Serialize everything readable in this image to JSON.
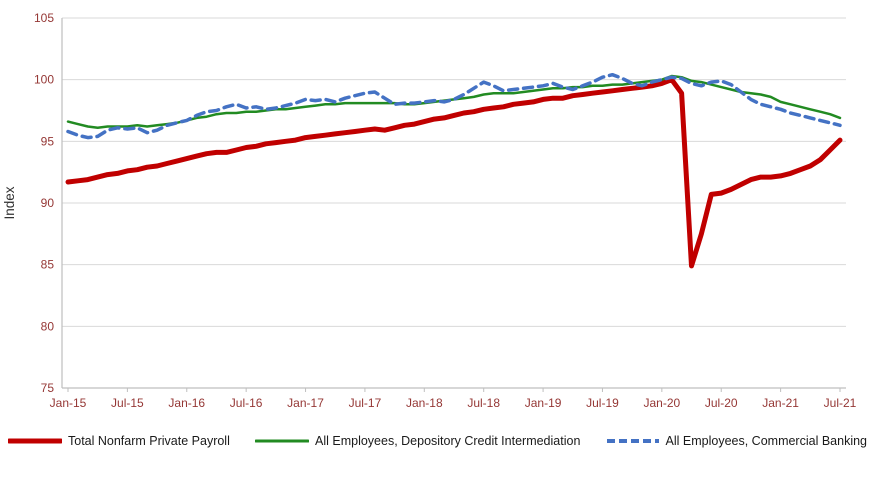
{
  "colors": {
    "background": "#ffffff",
    "gridline": "#d9d9d9",
    "axis_line": "#bfbfbf",
    "tick_label": "#953735",
    "ylabel_text": "#333333",
    "legend_text": "#1a1a1a"
  },
  "chart_data": {
    "type": "line",
    "title": "",
    "xlabel": "",
    "ylabel": "Index",
    "ylim": [
      75,
      105
    ],
    "y_ticks": [
      75,
      80,
      85,
      90,
      95,
      100,
      105
    ],
    "grid": true,
    "legend_position": "bottom",
    "x_tick_every": 6,
    "x_tick_labels": [
      "Jan-15",
      "Jul-15",
      "Jan-16",
      "Jul-16",
      "Jan-17",
      "Jul-17",
      "Jan-18",
      "Jul-18",
      "Jan-19",
      "Jul-19",
      "Jan-20",
      "Jul-20",
      "Jan-21",
      "Jul-21"
    ],
    "x_frequency": "monthly",
    "x_range": "Jan-2015 to Jul-2021",
    "series": [
      {
        "name": "Total Nonfarm Private Payroll",
        "color": "#c00000",
        "style": "solid",
        "width": 5,
        "values": [
          91.7,
          91.8,
          91.9,
          92.1,
          92.3,
          92.4,
          92.6,
          92.7,
          92.9,
          93.0,
          93.2,
          93.4,
          93.6,
          93.8,
          94.0,
          94.1,
          94.1,
          94.3,
          94.5,
          94.6,
          94.8,
          94.9,
          95.0,
          95.1,
          95.3,
          95.4,
          95.5,
          95.6,
          95.7,
          95.8,
          95.9,
          96.0,
          95.9,
          96.1,
          96.3,
          96.4,
          96.6,
          96.8,
          96.9,
          97.1,
          97.3,
          97.4,
          97.6,
          97.7,
          97.8,
          98.0,
          98.1,
          98.2,
          98.4,
          98.5,
          98.5,
          98.7,
          98.8,
          98.9,
          99.0,
          99.1,
          99.2,
          99.3,
          99.4,
          99.5,
          99.7,
          100.0,
          98.9,
          84.9,
          87.5,
          90.7,
          90.8,
          91.1,
          91.5,
          91.9,
          92.1,
          92.1,
          92.2,
          92.4,
          92.7,
          93.0,
          93.5,
          94.3,
          95.1
        ]
      },
      {
        "name": "All Employees, Depository Credit Intermediation",
        "color": "#228b22",
        "style": "solid",
        "width": 2.5,
        "values": [
          96.6,
          96.4,
          96.2,
          96.1,
          96.2,
          96.2,
          96.2,
          96.3,
          96.2,
          96.3,
          96.4,
          96.5,
          96.7,
          96.9,
          97.0,
          97.2,
          97.3,
          97.3,
          97.4,
          97.4,
          97.5,
          97.6,
          97.6,
          97.7,
          97.8,
          97.9,
          98.0,
          98.0,
          98.1,
          98.1,
          98.1,
          98.1,
          98.1,
          98.1,
          98.0,
          98.0,
          98.1,
          98.2,
          98.3,
          98.4,
          98.5,
          98.6,
          98.8,
          98.9,
          98.9,
          98.9,
          99.0,
          99.1,
          99.2,
          99.3,
          99.3,
          99.4,
          99.4,
          99.5,
          99.5,
          99.6,
          99.6,
          99.7,
          99.8,
          99.9,
          100.0,
          100.3,
          100.2,
          99.9,
          99.8,
          99.6,
          99.4,
          99.2,
          99.0,
          98.9,
          98.8,
          98.6,
          98.2,
          98.0,
          97.8,
          97.6,
          97.4,
          97.2,
          96.9
        ]
      },
      {
        "name": "All Employees, Commercial Banking",
        "color": "#4472c4",
        "style": "dashed",
        "width": 3.5,
        "values": [
          95.8,
          95.5,
          95.3,
          95.4,
          95.9,
          96.1,
          96.0,
          96.1,
          95.7,
          95.9,
          96.3,
          96.5,
          96.7,
          97.1,
          97.4,
          97.5,
          97.8,
          98.0,
          97.7,
          97.8,
          97.6,
          97.7,
          97.9,
          98.1,
          98.4,
          98.3,
          98.4,
          98.2,
          98.5,
          98.7,
          98.9,
          99.0,
          98.5,
          98.0,
          98.1,
          98.1,
          98.2,
          98.3,
          98.2,
          98.4,
          98.8,
          99.3,
          99.8,
          99.5,
          99.1,
          99.2,
          99.3,
          99.4,
          99.5,
          99.7,
          99.4,
          99.2,
          99.5,
          99.8,
          100.2,
          100.4,
          100.1,
          99.7,
          99.5,
          99.8,
          100.0,
          100.2,
          100.1,
          99.7,
          99.5,
          99.8,
          99.9,
          99.6,
          99.0,
          98.4,
          98.0,
          97.8,
          97.6,
          97.3,
          97.1,
          96.9,
          96.7,
          96.5,
          96.3
        ]
      }
    ]
  }
}
